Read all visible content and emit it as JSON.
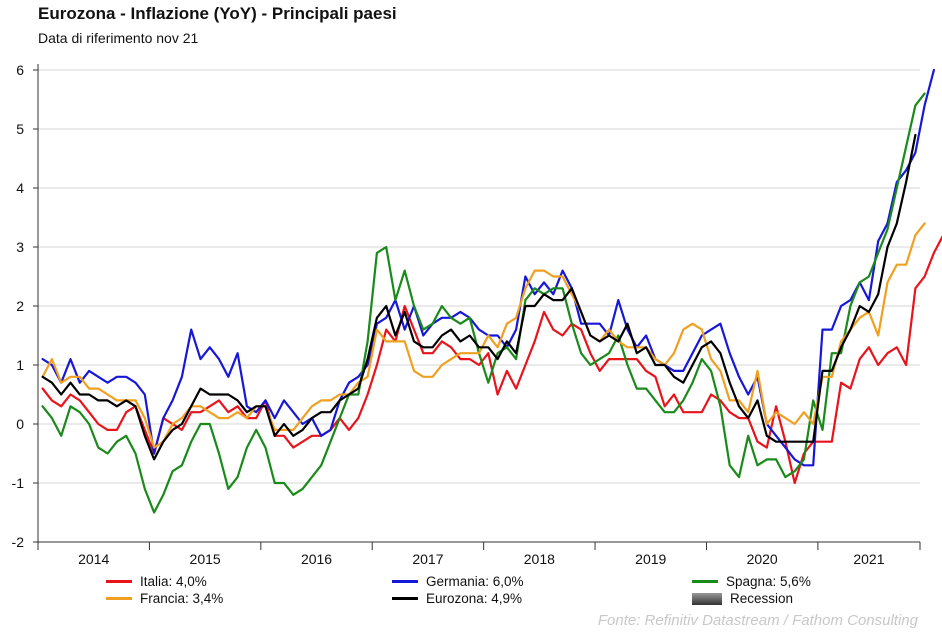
{
  "header": {
    "title": "Eurozona - Inflazione (YoY) - Principali paesi",
    "subtitle": "Data di riferimento nov 21"
  },
  "legend": {
    "items": [
      {
        "label": "Italia: 4,0%",
        "color": "#e8141c"
      },
      {
        "label": "Germania: 6,0%",
        "color": "#1717d8"
      },
      {
        "label": "Spagna: 5,6%",
        "color": "#1a8a1a"
      },
      {
        "label": "Francia: 3,4%",
        "color": "#f0a020"
      },
      {
        "label": "Eurozona: 4,9%",
        "color": "#000000"
      }
    ],
    "recession_label": "Recession"
  },
  "source": "Fonte: Refinitiv Datastream / Fathom Consulting",
  "chart_data": {
    "type": "line",
    "title": "Eurozona - Inflazione (YoY) - Principali paesi",
    "subtitle": "Data di riferimento nov 21",
    "x_start": "2014-01",
    "x_end": "2021-11",
    "x_ticks": [
      "2014",
      "2015",
      "2016",
      "2017",
      "2018",
      "2019",
      "2020",
      "2021"
    ],
    "ylim": [
      -2,
      6
    ],
    "y_ticks": [
      "-2",
      "-1",
      "0",
      "1",
      "2",
      "3",
      "4",
      "5",
      "6"
    ],
    "grid": true,
    "legend_position": "bottom",
    "series": [
      {
        "name": "Italia",
        "color": "#e8141c",
        "values": [
          0.6,
          0.4,
          0.3,
          0.5,
          0.4,
          0.2,
          0.0,
          -0.1,
          -0.1,
          0.2,
          0.3,
          -0.1,
          -0.5,
          0.1,
          0.0,
          -0.1,
          0.2,
          0.2,
          0.3,
          0.4,
          0.2,
          0.3,
          0.1,
          0.1,
          0.4,
          -0.2,
          -0.2,
          -0.4,
          -0.3,
          -0.2,
          -0.2,
          -0.1,
          0.1,
          -0.1,
          0.1,
          0.5,
          1.0,
          1.6,
          1.4,
          2.0,
          1.6,
          1.2,
          1.2,
          1.4,
          1.3,
          1.1,
          1.1,
          1.0,
          1.2,
          0.5,
          0.9,
          0.6,
          1.0,
          1.4,
          1.9,
          1.6,
          1.5,
          1.7,
          1.6,
          1.2,
          0.9,
          1.1,
          1.1,
          1.1,
          1.1,
          0.9,
          0.8,
          0.3,
          0.5,
          0.2,
          0.2,
          0.2,
          0.5,
          0.4,
          0.2,
          0.1,
          0.1,
          -0.3,
          -0.4,
          0.3,
          -0.3,
          -1.0,
          -0.5,
          -0.3,
          -0.3,
          -0.3,
          0.7,
          0.6,
          1.1,
          1.3,
          1.0,
          1.2,
          1.3,
          1.0,
          2.3,
          2.5,
          2.9,
          3.2,
          4.0
        ]
      },
      {
        "name": "Germania",
        "color": "#1717d8",
        "values": [
          1.1,
          1.0,
          0.7,
          1.1,
          0.7,
          0.9,
          0.8,
          0.7,
          0.8,
          0.8,
          0.7,
          0.5,
          -0.5,
          0.1,
          0.4,
          0.8,
          1.6,
          1.1,
          1.3,
          1.1,
          0.8,
          1.2,
          0.3,
          0.2,
          0.4,
          0.1,
          0.4,
          0.2,
          0.0,
          0.1,
          -0.2,
          -0.1,
          0.4,
          0.7,
          0.8,
          1.0,
          1.7,
          1.8,
          2.1,
          1.6,
          2.0,
          1.5,
          1.7,
          1.8,
          1.8,
          1.9,
          1.8,
          1.6,
          1.5,
          1.5,
          1.3,
          1.6,
          2.5,
          2.2,
          2.4,
          2.2,
          2.6,
          2.3,
          1.7,
          1.7,
          1.7,
          1.5,
          2.1,
          1.6,
          1.3,
          1.5,
          1.1,
          1.0,
          0.9,
          0.9,
          1.2,
          1.5,
          1.6,
          1.7,
          1.2,
          0.8,
          0.5,
          0.8,
          -0.0,
          -0.2,
          -0.4,
          -0.6,
          -0.7,
          -0.7,
          1.6,
          1.6,
          2.0,
          2.1,
          2.4,
          2.1,
          3.1,
          3.4,
          4.1,
          4.3,
          4.6,
          5.4,
          6.0
        ]
      },
      {
        "name": "Spagna",
        "color": "#1a8a1a",
        "values": [
          0.3,
          0.1,
          -0.2,
          0.3,
          0.2,
          0.0,
          -0.4,
          -0.5,
          -0.3,
          -0.2,
          -0.5,
          -1.1,
          -1.5,
          -1.2,
          -0.8,
          -0.7,
          -0.3,
          0.0,
          0.0,
          -0.5,
          -1.1,
          -0.9,
          -0.4,
          -0.1,
          -0.4,
          -1.0,
          -1.0,
          -1.2,
          -1.1,
          -0.9,
          -0.7,
          -0.3,
          0.1,
          0.5,
          0.5,
          1.4,
          2.9,
          3.0,
          2.1,
          2.6,
          2.0,
          1.6,
          1.7,
          2.0,
          1.8,
          1.7,
          1.8,
          1.2,
          0.7,
          1.2,
          1.3,
          1.1,
          2.1,
          2.3,
          2.2,
          2.3,
          2.3,
          1.7,
          1.2,
          1.0,
          1.1,
          1.2,
          1.5,
          1.0,
          0.6,
          0.6,
          0.4,
          0.2,
          0.2,
          0.4,
          0.7,
          1.1,
          0.9,
          0.3,
          -0.7,
          -0.9,
          -0.2,
          -0.7,
          -0.6,
          -0.6,
          -0.9,
          -0.8,
          -0.6,
          0.4,
          -0.1,
          1.2,
          1.2,
          2.0,
          2.4,
          2.5,
          2.9,
          3.3,
          4.0,
          4.7,
          5.4,
          5.6
        ]
      },
      {
        "name": "Francia",
        "color": "#f0a020",
        "values": [
          0.8,
          1.1,
          0.7,
          0.8,
          0.8,
          0.6,
          0.6,
          0.5,
          0.4,
          0.4,
          0.4,
          0.1,
          -0.4,
          -0.3,
          0.0,
          0.1,
          0.3,
          0.3,
          0.2,
          0.1,
          0.1,
          0.2,
          0.1,
          0.3,
          0.3,
          -0.1,
          -0.1,
          -0.1,
          0.1,
          0.3,
          0.4,
          0.4,
          0.5,
          0.5,
          0.7,
          0.8,
          1.6,
          1.4,
          1.4,
          1.4,
          0.9,
          0.8,
          0.8,
          1.0,
          1.1,
          1.2,
          1.2,
          1.2,
          1.5,
          1.3,
          1.7,
          1.8,
          2.3,
          2.6,
          2.6,
          2.5,
          2.5,
          2.2,
          1.9,
          1.5,
          1.4,
          1.6,
          1.4,
          1.3,
          1.3,
          1.3,
          1.1,
          1.0,
          1.2,
          1.6,
          1.7,
          1.6,
          1.1,
          0.9,
          0.4,
          0.4,
          0.2,
          0.9,
          0.0,
          0.2,
          0.1,
          0.0,
          0.2,
          0.0,
          0.8,
          0.8,
          1.4,
          1.6,
          1.8,
          1.9,
          1.5,
          2.4,
          2.7,
          2.7,
          3.2,
          3.4
        ]
      },
      {
        "name": "Eurozona",
        "color": "#000000",
        "values": [
          0.8,
          0.7,
          0.5,
          0.7,
          0.5,
          0.5,
          0.4,
          0.4,
          0.3,
          0.4,
          0.3,
          -0.2,
          -0.6,
          -0.3,
          -0.1,
          0.0,
          0.3,
          0.6,
          0.5,
          0.5,
          0.5,
          0.4,
          0.2,
          0.3,
          0.3,
          -0.2,
          0.0,
          -0.2,
          -0.1,
          0.1,
          0.2,
          0.2,
          0.4,
          0.5,
          0.6,
          1.1,
          1.8,
          2.0,
          1.5,
          1.9,
          1.4,
          1.3,
          1.3,
          1.5,
          1.6,
          1.4,
          1.5,
          1.3,
          1.3,
          1.1,
          1.4,
          1.2,
          2.0,
          2.0,
          2.2,
          2.1,
          2.1,
          2.3,
          1.9,
          1.5,
          1.4,
          1.5,
          1.4,
          1.7,
          1.2,
          1.3,
          1.0,
          1.0,
          0.8,
          0.7,
          1.0,
          1.3,
          1.4,
          1.2,
          0.7,
          0.3,
          0.1,
          0.4,
          -0.2,
          -0.3,
          -0.3,
          -0.3,
          -0.3,
          -0.3,
          0.9,
          0.9,
          1.3,
          1.6,
          2.0,
          1.9,
          2.2,
          3.0,
          3.4,
          4.1,
          4.9
        ]
      }
    ]
  }
}
